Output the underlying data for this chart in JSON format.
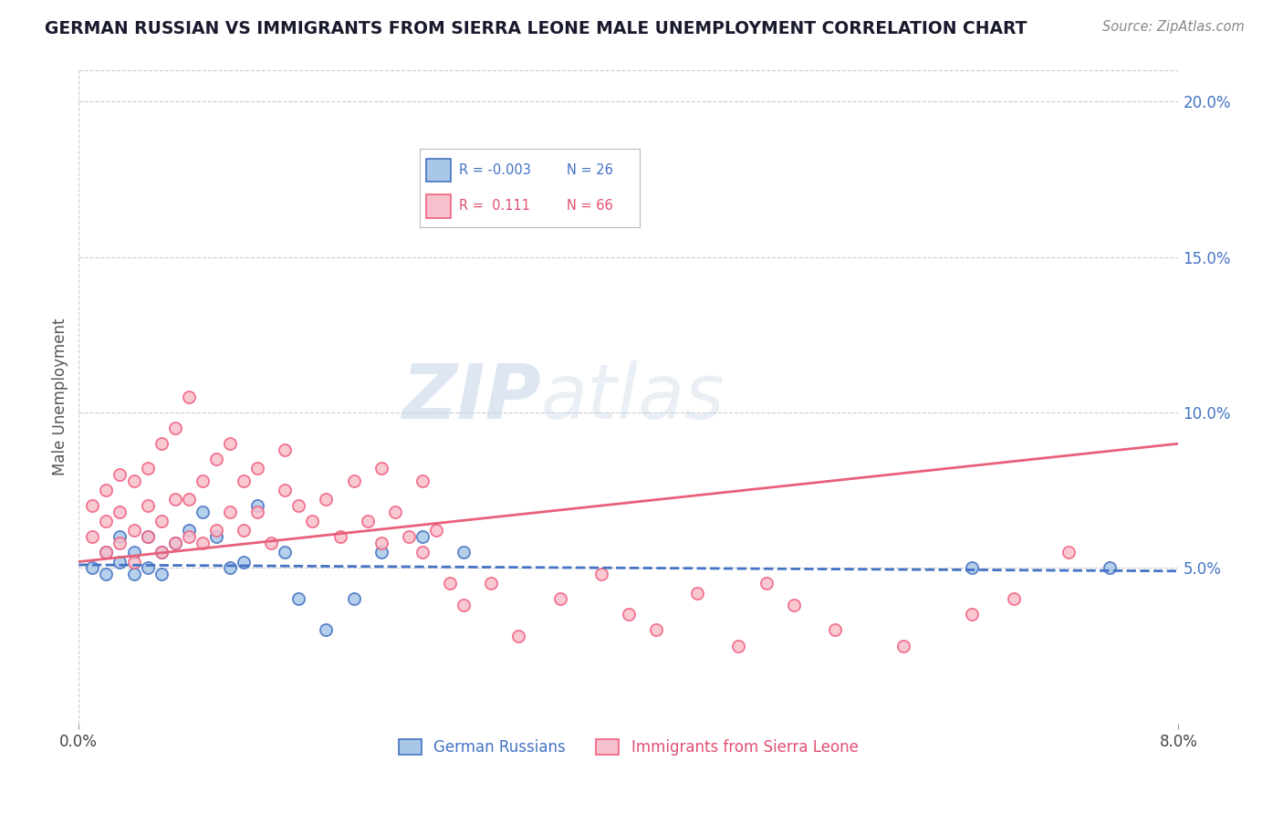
{
  "title": "GERMAN RUSSIAN VS IMMIGRANTS FROM SIERRA LEONE MALE UNEMPLOYMENT CORRELATION CHART",
  "source": "Source: ZipAtlas.com",
  "ylabel": "Male Unemployment",
  "right_yticks": [
    "20.0%",
    "15.0%",
    "10.0%",
    "5.0%"
  ],
  "right_ytick_vals": [
    0.2,
    0.15,
    0.1,
    0.05
  ],
  "legend_blue_label": "German Russians",
  "legend_pink_label": "Immigrants from Sierra Leone",
  "blue_color": "#A8C8E8",
  "pink_color": "#F8C0CC",
  "blue_edge_color": "#4472C4",
  "pink_edge_color": "#F06080",
  "blue_line_color": "#4472C4",
  "pink_line_color": "#E8607A",
  "xlim": [
    0.0,
    0.08
  ],
  "ylim": [
    0.0,
    0.21
  ],
  "blue_scatter_x": [
    0.001,
    0.002,
    0.002,
    0.003,
    0.003,
    0.004,
    0.004,
    0.005,
    0.005,
    0.006,
    0.006,
    0.007,
    0.008,
    0.009,
    0.01,
    0.011,
    0.012,
    0.013,
    0.015,
    0.016,
    0.018,
    0.02,
    0.022,
    0.025,
    0.028,
    0.065,
    0.075
  ],
  "blue_scatter_y": [
    0.05,
    0.055,
    0.048,
    0.052,
    0.06,
    0.048,
    0.055,
    0.05,
    0.06,
    0.048,
    0.055,
    0.058,
    0.062,
    0.068,
    0.06,
    0.05,
    0.052,
    0.07,
    0.055,
    0.04,
    0.03,
    0.04,
    0.055,
    0.06,
    0.055,
    0.05,
    0.05
  ],
  "pink_scatter_x": [
    0.001,
    0.001,
    0.002,
    0.002,
    0.002,
    0.003,
    0.003,
    0.003,
    0.004,
    0.004,
    0.004,
    0.005,
    0.005,
    0.005,
    0.006,
    0.006,
    0.006,
    0.007,
    0.007,
    0.007,
    0.008,
    0.008,
    0.008,
    0.009,
    0.009,
    0.01,
    0.01,
    0.011,
    0.011,
    0.012,
    0.012,
    0.013,
    0.013,
    0.014,
    0.015,
    0.015,
    0.016,
    0.017,
    0.018,
    0.019,
    0.02,
    0.021,
    0.022,
    0.022,
    0.023,
    0.024,
    0.025,
    0.025,
    0.026,
    0.027,
    0.028,
    0.03,
    0.032,
    0.035,
    0.038,
    0.04,
    0.042,
    0.045,
    0.048,
    0.05,
    0.052,
    0.055,
    0.06,
    0.065,
    0.068,
    0.072
  ],
  "pink_scatter_y": [
    0.06,
    0.07,
    0.055,
    0.065,
    0.075,
    0.058,
    0.068,
    0.08,
    0.052,
    0.062,
    0.078,
    0.06,
    0.07,
    0.082,
    0.055,
    0.065,
    0.09,
    0.058,
    0.072,
    0.095,
    0.06,
    0.072,
    0.105,
    0.058,
    0.078,
    0.062,
    0.085,
    0.068,
    0.09,
    0.062,
    0.078,
    0.068,
    0.082,
    0.058,
    0.075,
    0.088,
    0.07,
    0.065,
    0.072,
    0.06,
    0.078,
    0.065,
    0.058,
    0.082,
    0.068,
    0.06,
    0.055,
    0.078,
    0.062,
    0.045,
    0.038,
    0.045,
    0.028,
    0.04,
    0.048,
    0.035,
    0.03,
    0.042,
    0.025,
    0.045,
    0.038,
    0.03,
    0.025,
    0.035,
    0.04,
    0.055
  ],
  "blue_trend_x": [
    0.0,
    0.08
  ],
  "blue_trend_y": [
    0.051,
    0.049
  ],
  "pink_trend_x": [
    0.0,
    0.08
  ],
  "pink_trend_y": [
    0.052,
    0.09
  ]
}
